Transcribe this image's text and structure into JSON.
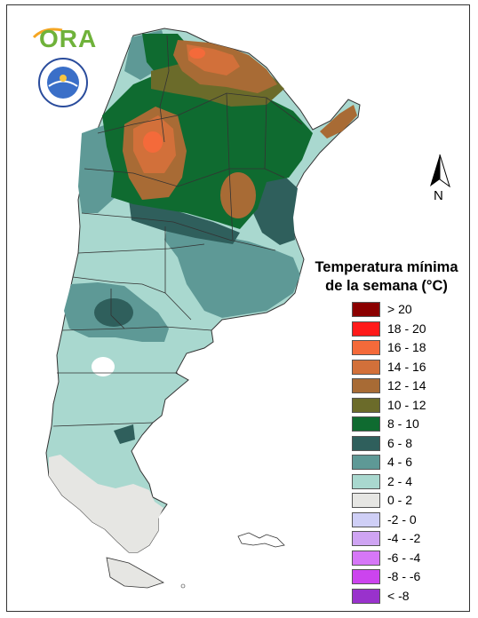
{
  "logo": {
    "text": "ORA",
    "seal_text": "SERVICIO METEOROLÓGICO NACIONAL ARGENTINA"
  },
  "compass": {
    "label": "N"
  },
  "legend": {
    "title_line1": "Temperatura mínima",
    "title_line2": "de la semana (°C)",
    "items": [
      {
        "label": "> 20",
        "color": "#8b0000"
      },
      {
        "label": "18 - 20",
        "color": "#ff1a1a"
      },
      {
        "label": "16 - 18",
        "color": "#f46a3a"
      },
      {
        "label": "14 - 16",
        "color": "#d2703a"
      },
      {
        "label": "12 - 14",
        "color": "#a86b35"
      },
      {
        "label": "10 - 12",
        "color": "#6b6b2a"
      },
      {
        "label": "8 - 10",
        "color": "#0f6b30"
      },
      {
        "label": "6 - 8",
        "color": "#2f5f5c"
      },
      {
        "label": "4 - 6",
        "color": "#5e9996"
      },
      {
        "label": "2 - 4",
        "color": "#a9d8cf"
      },
      {
        "label": "0 - 2",
        "color": "#e6e6e3"
      },
      {
        "label": "-2 - 0",
        "color": "#cfcff6"
      },
      {
        "label": "-4 - -2",
        "color": "#cfa4f3"
      },
      {
        "label": "-6 - -4",
        "color": "#d677f7"
      },
      {
        "label": "-8 - -6",
        "color": "#cc44ee"
      },
      {
        "label": "< -8",
        "color": "#9932cc"
      }
    ]
  }
}
